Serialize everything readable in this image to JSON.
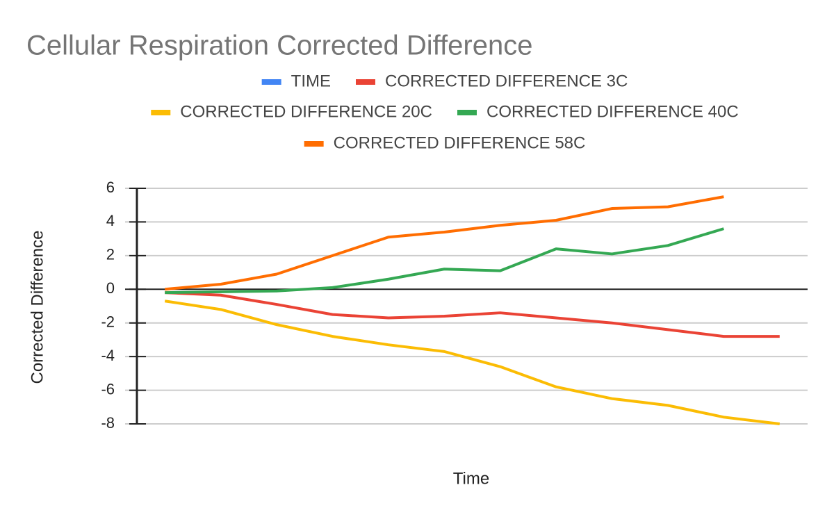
{
  "chart_data": {
    "type": "line",
    "title": "Cellular Respiration Corrected Difference",
    "x_label": "Time",
    "y_label": "Corrected Difference",
    "categories": [
      null,
      null,
      null,
      null,
      null,
      null,
      null,
      null,
      null,
      null,
      null,
      null
    ],
    "series": [
      {
        "name": "TIME",
        "color": "#4285f4",
        "values": [
          null,
          null,
          null,
          null,
          null,
          null,
          null,
          null,
          null,
          null,
          null,
          null
        ]
      },
      {
        "name": "CORRECTED DIFFERENCE 3C",
        "color": "#ea4335",
        "values": [
          -0.2,
          -0.35,
          -0.9,
          -1.5,
          -1.7,
          -1.6,
          -1.4,
          -1.7,
          -2.0,
          -2.4,
          -2.8,
          -2.8
        ]
      },
      {
        "name": "CORRECTED DIFFERENCE 20C",
        "color": "#fbbc04",
        "values": [
          -0.7,
          -1.2,
          -2.1,
          -2.8,
          -3.3,
          -3.7,
          -4.6,
          -5.8,
          -6.5,
          -6.9,
          -7.6,
          -8.0
        ]
      },
      {
        "name": "CORRECTED DIFFERENCE 40C",
        "color": "#34a853",
        "values": [
          -0.2,
          -0.15,
          -0.1,
          0.1,
          0.6,
          1.2,
          1.1,
          2.4,
          2.1,
          2.6,
          3.6,
          null
        ]
      },
      {
        "name": "CORRECTED DIFFERENCE 58C",
        "color": "#ff6d01",
        "values": [
          0.0,
          0.3,
          0.9,
          2.0,
          3.1,
          3.4,
          3.8,
          4.1,
          4.8,
          4.9,
          5.5,
          null
        ]
      }
    ],
    "ylim": [
      -8,
      6
    ],
    "yticks": [
      -8,
      -6,
      -4,
      -2,
      0,
      2,
      4,
      6
    ],
    "grid": true
  }
}
